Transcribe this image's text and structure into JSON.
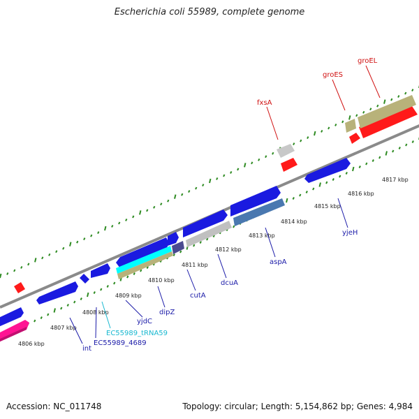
{
  "title": "Escherichia coli 55989, complete genome",
  "footer": {
    "accession": "Accession: NC_011748",
    "topology": "Topology: circular; Length: 5,154,862 bp; Genes: 4,984"
  },
  "colors": {
    "forward_gene": "#1a1ae0",
    "reverse_gene": "#1a1ae0",
    "highlight_gene": "#ff1a1a",
    "gc_olive": "#b8b27a",
    "backbone": "#808080",
    "tick": "#2e8b22",
    "label_blue": "#1a1aa8",
    "label_red": "#d01010",
    "label_cyan": "#18b8d0"
  },
  "kbp_ticks": [
    "4806 kbp",
    "4807 kbp",
    "4808 kbp",
    "4809 kbp",
    "4810 kbp",
    "4811 kbp",
    "4812 kbp",
    "4813 kbp",
    "4814 kbp",
    "4815 kbp",
    "4816 kbp",
    "4817 kbp"
  ],
  "gene_labels": [
    {
      "text": "fxsA",
      "color": "red"
    },
    {
      "text": "groES",
      "color": "red"
    },
    {
      "text": "groEL",
      "color": "red"
    },
    {
      "text": "int",
      "color": "blue"
    },
    {
      "text": "EC55989_4689",
      "color": "blue"
    },
    {
      "text": "EC55989_tRNA59",
      "color": "cyan"
    },
    {
      "text": "yjdC",
      "color": "blue"
    },
    {
      "text": "dipZ",
      "color": "blue"
    },
    {
      "text": "cutA",
      "color": "blue"
    },
    {
      "text": "dcuA",
      "color": "blue"
    },
    {
      "text": "aspA",
      "color": "blue"
    },
    {
      "text": "yjeH",
      "color": "blue"
    }
  ]
}
